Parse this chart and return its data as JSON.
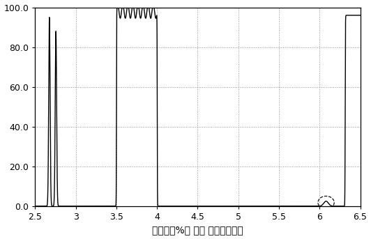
{
  "title": "",
  "xlabel": "透过率（%） 对应 波长（微米）",
  "ylabel": "",
  "xlim": [
    2.5,
    6.5
  ],
  "ylim": [
    0.0,
    100.0
  ],
  "yticks": [
    0.0,
    20.0,
    40.0,
    60.0,
    80.0,
    100.0
  ],
  "xticks": [
    2.5,
    3.0,
    3.5,
    4.0,
    4.5,
    5.0,
    5.5,
    6.0,
    6.5
  ],
  "line_color": "#000000",
  "background_color": "#ffffff",
  "grid_color": "#888888",
  "xlabel_fontsize": 10,
  "tick_fontsize": 9
}
